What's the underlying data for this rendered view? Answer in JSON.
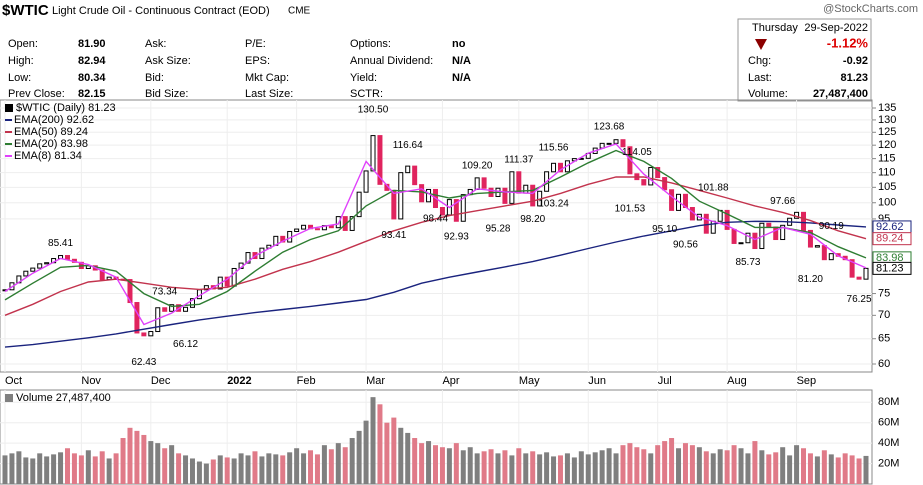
{
  "header": {
    "symbol": "$WTIC",
    "name": "Light Crude Oil - Continuous Contract (EOD)",
    "exchange": "CME",
    "watermark": "@StockCharts.com",
    "day": "Thursday",
    "date": "29-Sep-2022",
    "change_pct": "-1.12%",
    "quote": [
      {
        "label": "Open:",
        "value": "81.90"
      },
      {
        "label": "High:",
        "value": "82.94"
      },
      {
        "label": "Low:",
        "value": "80.34"
      },
      {
        "label": "Prev Close:",
        "value": "82.15"
      }
    ],
    "col2": [
      {
        "label": "Ask:"
      },
      {
        "label": "Ask Size:"
      },
      {
        "label": "Bid:"
      },
      {
        "label": "Bid Size:"
      }
    ],
    "col3": [
      {
        "label": "P/E:"
      },
      {
        "label": "EPS:"
      },
      {
        "label": "Mkt Cap:"
      },
      {
        "label": "Last Size:"
      }
    ],
    "col4": [
      {
        "label": "Options:",
        "value": "no"
      },
      {
        "label": "Annual Dividend:",
        "value": "N/A"
      },
      {
        "label": "Yield:",
        "value": "N/A"
      },
      {
        "label": "SCTR:"
      }
    ],
    "col5": [
      {
        "label": "Chg:",
        "value": "-0.92"
      },
      {
        "label": "Last:",
        "value": "81.23"
      },
      {
        "label": "Volume:",
        "value": "27,487,400"
      }
    ]
  },
  "chart_data": {
    "type": "stock",
    "log": true,
    "grid": true,
    "ylim": [
      60,
      135
    ],
    "yticks": [
      60,
      65,
      70,
      75,
      95,
      100,
      105,
      110,
      115,
      120,
      125,
      130,
      135
    ],
    "xlim": [
      0,
      124
    ],
    "xticks": [
      {
        "value": 0,
        "label": "Oct"
      },
      {
        "value": 11,
        "label": "Nov"
      },
      {
        "value": 21,
        "label": "Dec"
      },
      {
        "value": 32,
        "label": "2022"
      },
      {
        "value": 42,
        "label": "Feb"
      },
      {
        "value": 52,
        "label": "Mar"
      },
      {
        "value": 63,
        "label": "Apr"
      },
      {
        "value": 74,
        "label": "May"
      },
      {
        "value": 84,
        "label": "Jun"
      },
      {
        "value": 94,
        "label": "Jul"
      },
      {
        "value": 104,
        "label": "Aug"
      },
      {
        "value": 114,
        "label": "Sep"
      }
    ],
    "price": {
      "name": "$WTIC (Daily) 81.23",
      "up_color": "#000000",
      "down_color": "#e0245e",
      "values": [
        75.9,
        77.6,
        79.3,
        80.5,
        81.3,
        82.4,
        82.7,
        83.8,
        84.6,
        83.6,
        82.8,
        81.2,
        81.9,
        80.8,
        78.4,
        79.0,
        78.5,
        78.4,
        72.9,
        66.2,
        65.6,
        66.5,
        71.7,
        70.9,
        72.4,
        70.9,
        71.8,
        73.8,
        75.9,
        76.9,
        76.1,
        79.0,
        76.8,
        81.2,
        82.6,
        85.4,
        83.8,
        86.6,
        87.4,
        89.9,
        88.3,
        91.3,
        92.0,
        93.1,
        92.1,
        91.8,
        93.0,
        92.4,
        95.7,
        91.6,
        95.7,
        103.4,
        110.6,
        123.7,
        106.0,
        104.0,
        95.0,
        110.0,
        112.3,
        105.9,
        100.3,
        104.3,
        98.5,
        96.2,
        101.0,
        94.3,
        102.6,
        104.3,
        108.2,
        104.7,
        102.0,
        104.7,
        99.8,
        110.3,
        103.1,
        105.7,
        99.0,
        103.7,
        110.3,
        113.3,
        110.3,
        114.2,
        115.0,
        115.1,
        116.9,
        118.9,
        120.7,
        120.7,
        122.1,
        119.4,
        109.6,
        107.6,
        105.8,
        111.8,
        108.3,
        104.2,
        97.6,
        102.7,
        98.5,
        94.7,
        96.4,
        90.8,
        94.3,
        97.6,
        91.9,
        87.9,
        88.1,
        90.8,
        86.5,
        93.7,
        92.6,
        89.0,
        93.1,
        95.2,
        97.0,
        91.6,
        86.9,
        87.3,
        83.5,
        85.1,
        84.4,
        83.5,
        79.0,
        78.5,
        81.23
      ]
    },
    "overlay_x": [
      0,
      4,
      8,
      12,
      16,
      20,
      24,
      28,
      32,
      36,
      40,
      44,
      48,
      52,
      56,
      60,
      64,
      68,
      72,
      76,
      80,
      84,
      88,
      92,
      96,
      100,
      104,
      108,
      112,
      116,
      120,
      124
    ],
    "overlays": [
      {
        "name": "EMA(200) 92.62",
        "color": "#1a237e",
        "box": true,
        "values": [
          63.3,
          63.8,
          64.5,
          65.2,
          66.0,
          67.0,
          68.0,
          69.0,
          69.8,
          70.6,
          71.3,
          72.0,
          72.8,
          73.6,
          75.3,
          77.5,
          79.0,
          80.3,
          81.6,
          83.0,
          84.7,
          86.5,
          88.3,
          90.0,
          91.5,
          93.0,
          94.0,
          94.3,
          94.2,
          93.8,
          93.2,
          92.62
        ]
      },
      {
        "name": "EMA(50) 89.24",
        "color": "#c2334d",
        "box": true,
        "values": [
          70.0,
          72.5,
          75.5,
          77.8,
          78.5,
          77.5,
          76.5,
          76.0,
          76.5,
          78.5,
          81.0,
          83.0,
          85.5,
          88.5,
          91.5,
          94.0,
          96.0,
          97.5,
          99.0,
          100.5,
          103.0,
          106.0,
          108.5,
          108.5,
          106.5,
          104.0,
          101.5,
          99.0,
          97.0,
          94.5,
          91.5,
          89.24
        ]
      },
      {
        "name": "EMA(20) 83.98",
        "color": "#2e7d32",
        "box": true,
        "values": [
          73.5,
          77.5,
          81.5,
          82.0,
          80.5,
          75.0,
          72.0,
          72.5,
          75.5,
          80.5,
          85.5,
          89.0,
          91.5,
          99.0,
          104.0,
          103.5,
          101.5,
          103.0,
          103.5,
          104.0,
          108.5,
          113.5,
          118.0,
          114.0,
          108.0,
          100.5,
          96.5,
          92.5,
          92.5,
          91.0,
          87.0,
          83.98
        ]
      },
      {
        "name": "EMA(8) 81.34",
        "color": "#e040fb",
        "box": false,
        "values": [
          75.5,
          80.0,
          83.8,
          82.2,
          79.0,
          68.0,
          70.5,
          74.5,
          78.5,
          84.5,
          88.5,
          92.2,
          93.5,
          114.0,
          103.0,
          104.5,
          98.5,
          104.5,
          103.5,
          103.0,
          111.0,
          117.0,
          120.5,
          109.5,
          102.0,
          95.5,
          93.0,
          89.0,
          92.5,
          90.5,
          84.5,
          81.34
        ]
      }
    ],
    "annotations": [
      {
        "x": 8,
        "value": 85.41,
        "label": "85.41",
        "pos": "above"
      },
      {
        "x": 20,
        "value": 62.43,
        "label": "62.43",
        "pos": "below"
      },
      {
        "x": 23,
        "value": 73.34,
        "label": "73.34",
        "pos": "above"
      },
      {
        "x": 26,
        "value": 66.12,
        "label": "66.12",
        "pos": "below"
      },
      {
        "x": 53,
        "value": 130.5,
        "label": "130.50",
        "pos": "above"
      },
      {
        "x": 56,
        "value": 93.41,
        "label": "93.41",
        "pos": "below"
      },
      {
        "x": 58,
        "value": 116.64,
        "label": "116.64",
        "pos": "above"
      },
      {
        "x": 62,
        "value": 98.44,
        "label": "98.44",
        "pos": "below"
      },
      {
        "x": 65,
        "value": 92.93,
        "label": "92.93",
        "pos": "below"
      },
      {
        "x": 68,
        "value": 109.2,
        "label": "109.20",
        "pos": "above"
      },
      {
        "x": 71,
        "value": 95.28,
        "label": "95.28",
        "pos": "below"
      },
      {
        "x": 74,
        "value": 111.37,
        "label": "111.37",
        "pos": "above"
      },
      {
        "x": 76,
        "value": 98.2,
        "label": "98.20",
        "pos": "below"
      },
      {
        "x": 79,
        "value": 103.24,
        "label": "103.24",
        "pos": "below"
      },
      {
        "x": 79,
        "value": 115.56,
        "label": "115.56",
        "pos": "above"
      },
      {
        "x": 87,
        "value": 123.68,
        "label": "123.68",
        "pos": "above"
      },
      {
        "x": 91,
        "value": 114.05,
        "label": "114.05",
        "pos": "above"
      },
      {
        "x": 90,
        "value": 101.53,
        "label": "101.53",
        "pos": "below"
      },
      {
        "x": 95,
        "value": 95.1,
        "label": "95.10",
        "pos": "below"
      },
      {
        "x": 98,
        "value": 90.56,
        "label": "90.56",
        "pos": "below"
      },
      {
        "x": 102,
        "value": 101.88,
        "label": "101.88",
        "pos": "above"
      },
      {
        "x": 107,
        "value": 85.73,
        "label": "85.73",
        "pos": "below"
      },
      {
        "x": 112,
        "value": 97.66,
        "label": "97.66",
        "pos": "above"
      },
      {
        "x": 119,
        "value": 90.19,
        "label": "90.19",
        "pos": "above"
      },
      {
        "x": 116,
        "value": 81.2,
        "label": "81.20",
        "pos": "below"
      },
      {
        "x": 123,
        "value": 76.25,
        "label": "76.25",
        "pos": "below"
      }
    ],
    "volume": {
      "name": "Volume 27,487,400",
      "up_color": "#7f7f7f",
      "down_color": "#e07a88",
      "ylim": [
        0,
        92
      ],
      "yticks": [
        {
          "value": 20,
          "label": "20M"
        },
        {
          "value": 40,
          "label": "40M"
        },
        {
          "value": 60,
          "label": "60M"
        },
        {
          "value": 80,
          "label": "80M"
        }
      ],
      "values": [
        28,
        30,
        32,
        26,
        25,
        30,
        27,
        29,
        31,
        35,
        30,
        28,
        33,
        27,
        32,
        25,
        30,
        45,
        55,
        52,
        48,
        42,
        40,
        35,
        38,
        30,
        28,
        25,
        22,
        20,
        24,
        28,
        26,
        25,
        30,
        28,
        32,
        27,
        30,
        29,
        28,
        31,
        35,
        30,
        33,
        29,
        38,
        34,
        40,
        36,
        45,
        52,
        62,
        85,
        78,
        60,
        65,
        55,
        50,
        45,
        40,
        42,
        38,
        36,
        35,
        40,
        33,
        36,
        30,
        32,
        34,
        30,
        33,
        28,
        35,
        30,
        32,
        29,
        31,
        27,
        28,
        30,
        26,
        32,
        29,
        31,
        33,
        35,
        30,
        38,
        40,
        36,
        34,
        30,
        38,
        42,
        45,
        35,
        40,
        38,
        36,
        32,
        30,
        34,
        33,
        38,
        35,
        30,
        42,
        33,
        29,
        31,
        36,
        28,
        38,
        35,
        30,
        27,
        33,
        29,
        26,
        30,
        28,
        25,
        27.4874
      ]
    }
  }
}
